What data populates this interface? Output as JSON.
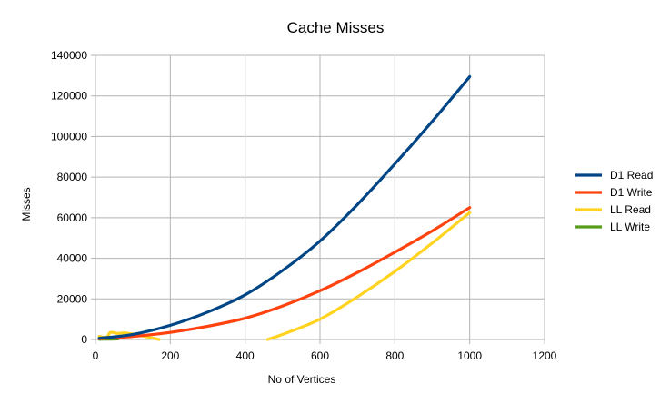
{
  "chart_data": {
    "type": "line",
    "title": "Cache Misses",
    "xlabel": "No of Vertices",
    "ylabel": "Misses",
    "xlim": [
      0,
      1200
    ],
    "ylim": [
      0,
      140000
    ],
    "xticks": [
      "0",
      "200",
      "400",
      "600",
      "800",
      "1000",
      "1200"
    ],
    "yticks": [
      "0",
      "20000",
      "40000",
      "60000",
      "80000",
      "100000",
      "120000",
      "140000"
    ],
    "grid": true,
    "legend_position": "right",
    "series": [
      {
        "name": "D1 Read",
        "color": "#004586",
        "x": [
          10,
          100,
          200,
          300,
          400,
          500,
          600,
          700,
          800,
          900,
          1000
        ],
        "y": [
          600,
          2500,
          7000,
          13500,
          22000,
          34000,
          48500,
          66500,
          86500,
          107500,
          129500
        ]
      },
      {
        "name": "D1 Write",
        "color": "#ff420e",
        "x": [
          10,
          100,
          200,
          300,
          400,
          500,
          600,
          700,
          800,
          900,
          1000
        ],
        "y": [
          400,
          1500,
          3500,
          6500,
          10500,
          16500,
          24000,
          33000,
          43000,
          53500,
          65000
        ]
      },
      {
        "name": "LL Read",
        "color": "#ffd320",
        "x": [
          10,
          30,
          40,
          60,
          80,
          120,
          170,
          null,
          460,
          500,
          600,
          700,
          800,
          900,
          1000
        ],
        "y": [
          1500,
          1200,
          3500,
          3000,
          3200,
          2000,
          0,
          null,
          0,
          2500,
          10000,
          21000,
          33500,
          47500,
          62500
        ]
      },
      {
        "name": "LL Write",
        "color": "#579d1c",
        "x": [
          10,
          30,
          50,
          60
        ],
        "y": [
          100,
          150,
          200,
          250
        ]
      }
    ]
  }
}
